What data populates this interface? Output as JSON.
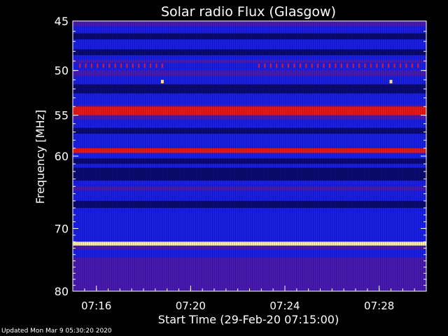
{
  "footer": {
    "updated": "Updated Mon Mar  9 05:30:20 2020"
  },
  "chart_data": {
    "type": "heatmap",
    "title": "Solar radio Flux (Glasgow)",
    "xlabel": "Start Time (29-Feb-20 07:15:00)",
    "ylabel": "Frequency [MHz]",
    "x_unit": "minutes after 07:15:00",
    "xlim": [
      0,
      15
    ],
    "ylim": [
      45,
      80
    ],
    "ylog": true,
    "xticks": [
      {
        "label": "07:16",
        "value": 1
      },
      {
        "label": "07:20",
        "value": 5
      },
      {
        "label": "07:24",
        "value": 9
      },
      {
        "label": "07:28",
        "value": 13
      }
    ],
    "yticks": [
      {
        "label": "45",
        "value": 45
      },
      {
        "label": "50",
        "value": 50
      },
      {
        "label": "55",
        "value": 55
      },
      {
        "label": "60",
        "value": 60
      },
      {
        "label": "70",
        "value": 70
      },
      {
        "label": "80",
        "value": 80
      }
    ],
    "colors": {
      "background": "#000000",
      "base": "#1a1fe6",
      "dark": "#0a0a70",
      "mid": "#5a1aa0",
      "red": "#e81818",
      "hot": "#fff0b0"
    },
    "bands": [
      {
        "from": 45.0,
        "to": 45.5,
        "level": "mid"
      },
      {
        "from": 46.2,
        "to": 46.8,
        "level": "dark"
      },
      {
        "from": 47.8,
        "to": 48.4,
        "level": "dark"
      },
      {
        "from": 48.9,
        "to": 49.2,
        "level": "mid"
      },
      {
        "from": 50.0,
        "to": 50.6,
        "level": "mid"
      },
      {
        "from": 51.5,
        "to": 52.5,
        "level": "dark"
      },
      {
        "from": 53.8,
        "to": 54.0,
        "level": "mid"
      },
      {
        "from": 54.0,
        "to": 55.0,
        "level": "red"
      },
      {
        "from": 55.0,
        "to": 55.5,
        "level": "mid"
      },
      {
        "from": 56.5,
        "to": 57.2,
        "level": "dark"
      },
      {
        "from": 59.0,
        "to": 59.6,
        "level": "red"
      },
      {
        "from": 60.3,
        "to": 61.0,
        "level": "dark"
      },
      {
        "from": 61.5,
        "to": 63.2,
        "level": "dark"
      },
      {
        "from": 64.0,
        "to": 64.6,
        "level": "mid"
      },
      {
        "from": 66.0,
        "to": 67.0,
        "level": "dark"
      },
      {
        "from": 72.0,
        "to": 72.6,
        "level": "hot"
      },
      {
        "from": 72.6,
        "to": 73.2,
        "level": "mid"
      },
      {
        "from": 74.5,
        "to": 80.0,
        "level": "mid"
      }
    ],
    "bursts": [
      {
        "x": 3.8,
        "freq": 51.2
      },
      {
        "x": 13.5,
        "freq": 51.2
      }
    ],
    "dotted_interference": {
      "freq": 49.5,
      "segments": [
        [
          0.3,
          3.8
        ],
        [
          7.9,
          14.8
        ]
      ],
      "spacing": 0.25
    }
  }
}
